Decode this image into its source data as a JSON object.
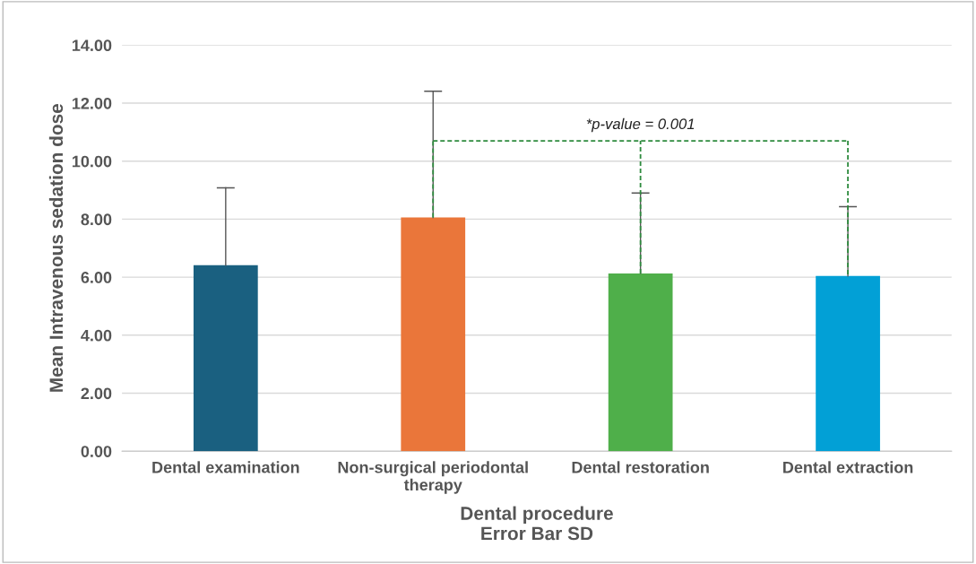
{
  "chart_data": {
    "type": "bar",
    "categories": [
      "Dental examination",
      "Non-surgical periodontal\ntherapy",
      "Dental restoration",
      "Dental extraction"
    ],
    "values": [
      6.41,
      8.06,
      6.13,
      6.04
    ],
    "colors": [
      "#1a6080",
      "#ea763a",
      "#4faf4a",
      "#02a0d6"
    ],
    "errors": [
      [
        6.41,
        9.08
      ],
      [
        8.06,
        12.41
      ],
      [
        6.13,
        8.9
      ],
      [
        6.04,
        8.43
      ]
    ],
    "ylim": [
      0,
      14
    ],
    "yticks": [
      {
        "value": 0,
        "label": "0.00"
      },
      {
        "value": 2,
        "label": "2.00"
      },
      {
        "value": 4,
        "label": "4.00"
      },
      {
        "value": 6,
        "label": "6.00"
      },
      {
        "value": 8,
        "label": "8.00"
      },
      {
        "value": 10,
        "label": "10.00"
      },
      {
        "value": 12,
        "label": "12.00"
      },
      {
        "value": 14,
        "label": "14.00"
      }
    ],
    "xlabel": "Dental procedure\nError Bar SD",
    "ylabel": "Mean Intravenous sedation dose",
    "annotations": [
      "*p-value = 0.001"
    ],
    "grid": "y",
    "legend": false
  }
}
